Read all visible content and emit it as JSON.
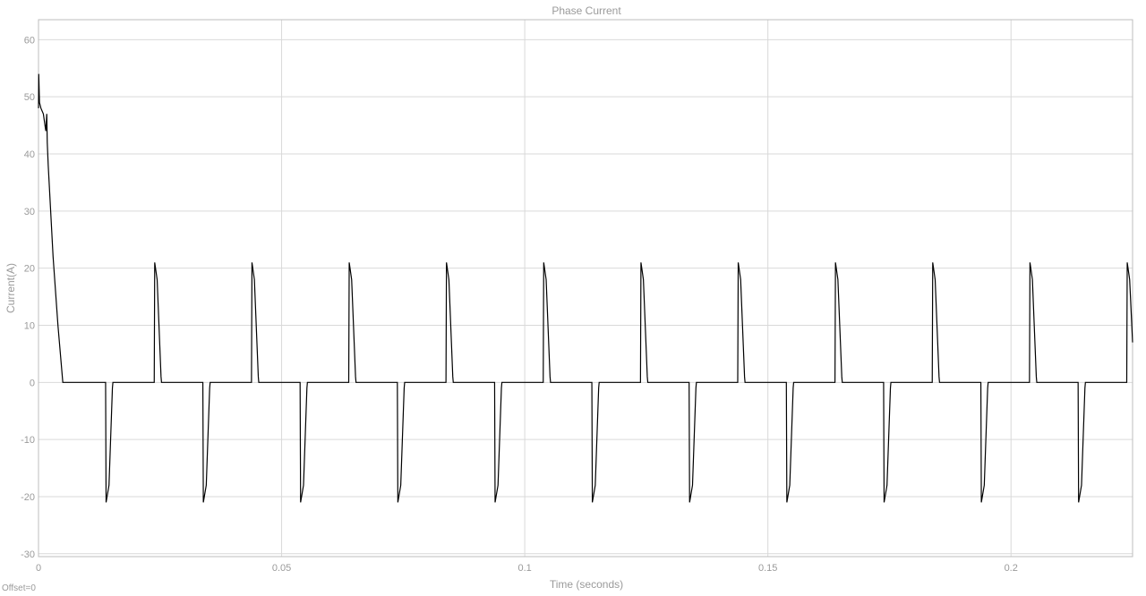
{
  "chart_data": {
    "type": "line",
    "title": "Phase Current",
    "xlabel": "Time (seconds)",
    "ylabel": "Current(A)",
    "offset_label": "Offset=0",
    "xlim": [
      0,
      0.225
    ],
    "ylim": [
      -30.5,
      63.5
    ],
    "x_ticks": [
      0,
      0.05,
      0.1,
      0.15,
      0.2
    ],
    "x_tick_labels": [
      "0",
      "0.05",
      "0.1",
      "0.15",
      "0.2"
    ],
    "y_ticks": [
      60,
      50,
      40,
      30,
      20,
      10,
      0,
      -10,
      -20,
      -30
    ],
    "y_tick_labels": [
      "60",
      "50",
      "40",
      "30",
      "20",
      "10",
      "0",
      "-10",
      "-20",
      "-30"
    ],
    "grid": true,
    "line_color": "#000000",
    "grid_color": "#d9d9d9",
    "series": [
      {
        "name": "Phase Current",
        "x": [
          0,
          5e-05,
          0.0002,
          0.0005,
          0.001,
          0.0015,
          0.0017,
          0.0018,
          0.0019,
          0.002,
          0.0025,
          0.003,
          0.004,
          0.005,
          0.0052,
          0.0138,
          0.0139,
          0.0145,
          0.0152,
          0.0153,
          0.0238,
          0.0239,
          0.0244,
          0.0252,
          0.0253,
          0.0338,
          0.0339,
          0.0345,
          0.0352,
          0.0353,
          0.0438,
          0.0439,
          0.0444,
          0.0452,
          0.0453,
          0.0538,
          0.0539,
          0.0545,
          0.0552,
          0.0553,
          0.0638,
          0.0639,
          0.0644,
          0.0652,
          0.0653,
          0.0738,
          0.0739,
          0.0745,
          0.0752,
          0.0753,
          0.0838,
          0.0839,
          0.0844,
          0.0852,
          0.0853,
          0.0938,
          0.0939,
          0.0945,
          0.0952,
          0.0953,
          0.1038,
          0.1039,
          0.1044,
          0.1052,
          0.1053,
          0.1138,
          0.1139,
          0.1145,
          0.1152,
          0.1153,
          0.1238,
          0.1239,
          0.1244,
          0.1252,
          0.1253,
          0.1338,
          0.1339,
          0.1345,
          0.1352,
          0.1353,
          0.1438,
          0.1439,
          0.1444,
          0.1452,
          0.1453,
          0.1538,
          0.1539,
          0.1545,
          0.1552,
          0.1553,
          0.1638,
          0.1639,
          0.1644,
          0.1652,
          0.1653,
          0.1738,
          0.1739,
          0.1745,
          0.1752,
          0.1753,
          0.1838,
          0.1839,
          0.1844,
          0.1852,
          0.1853,
          0.1938,
          0.1939,
          0.1945,
          0.1952,
          0.1953,
          0.2038,
          0.2039,
          0.2044,
          0.2052,
          0.2053,
          0.2138,
          0.2139,
          0.2145,
          0.2152,
          0.2153,
          0.2238,
          0.2239,
          0.2244,
          0.225
        ],
        "y": [
          48,
          54,
          49,
          48,
          47,
          44,
          47,
          42,
          40,
          38,
          30,
          22,
          10,
          0,
          0,
          0,
          -21,
          -18,
          -1,
          0,
          0,
          21,
          18,
          1,
          0,
          0,
          -21,
          -18,
          -1,
          0,
          0,
          21,
          18,
          1,
          0,
          0,
          -21,
          -18,
          -1,
          0,
          0,
          21,
          18,
          1,
          0,
          0,
          -21,
          -18,
          -1,
          0,
          0,
          21,
          18,
          1,
          0,
          0,
          -21,
          -18,
          -1,
          0,
          0,
          21,
          18,
          1,
          0,
          0,
          -21,
          -18,
          -1,
          0,
          0,
          21,
          18,
          1,
          0,
          0,
          -21,
          -18,
          -1,
          0,
          0,
          21,
          18,
          1,
          0,
          0,
          -21,
          -18,
          -1,
          0,
          0,
          21,
          18,
          1,
          0,
          0,
          -21,
          -18,
          -1,
          0,
          0,
          21,
          18,
          1,
          0,
          0,
          -21,
          -18,
          -1,
          0,
          0,
          21,
          18,
          1,
          0,
          0,
          -21,
          -18,
          -1,
          0,
          0,
          21,
          18,
          7
        ]
      }
    ]
  }
}
